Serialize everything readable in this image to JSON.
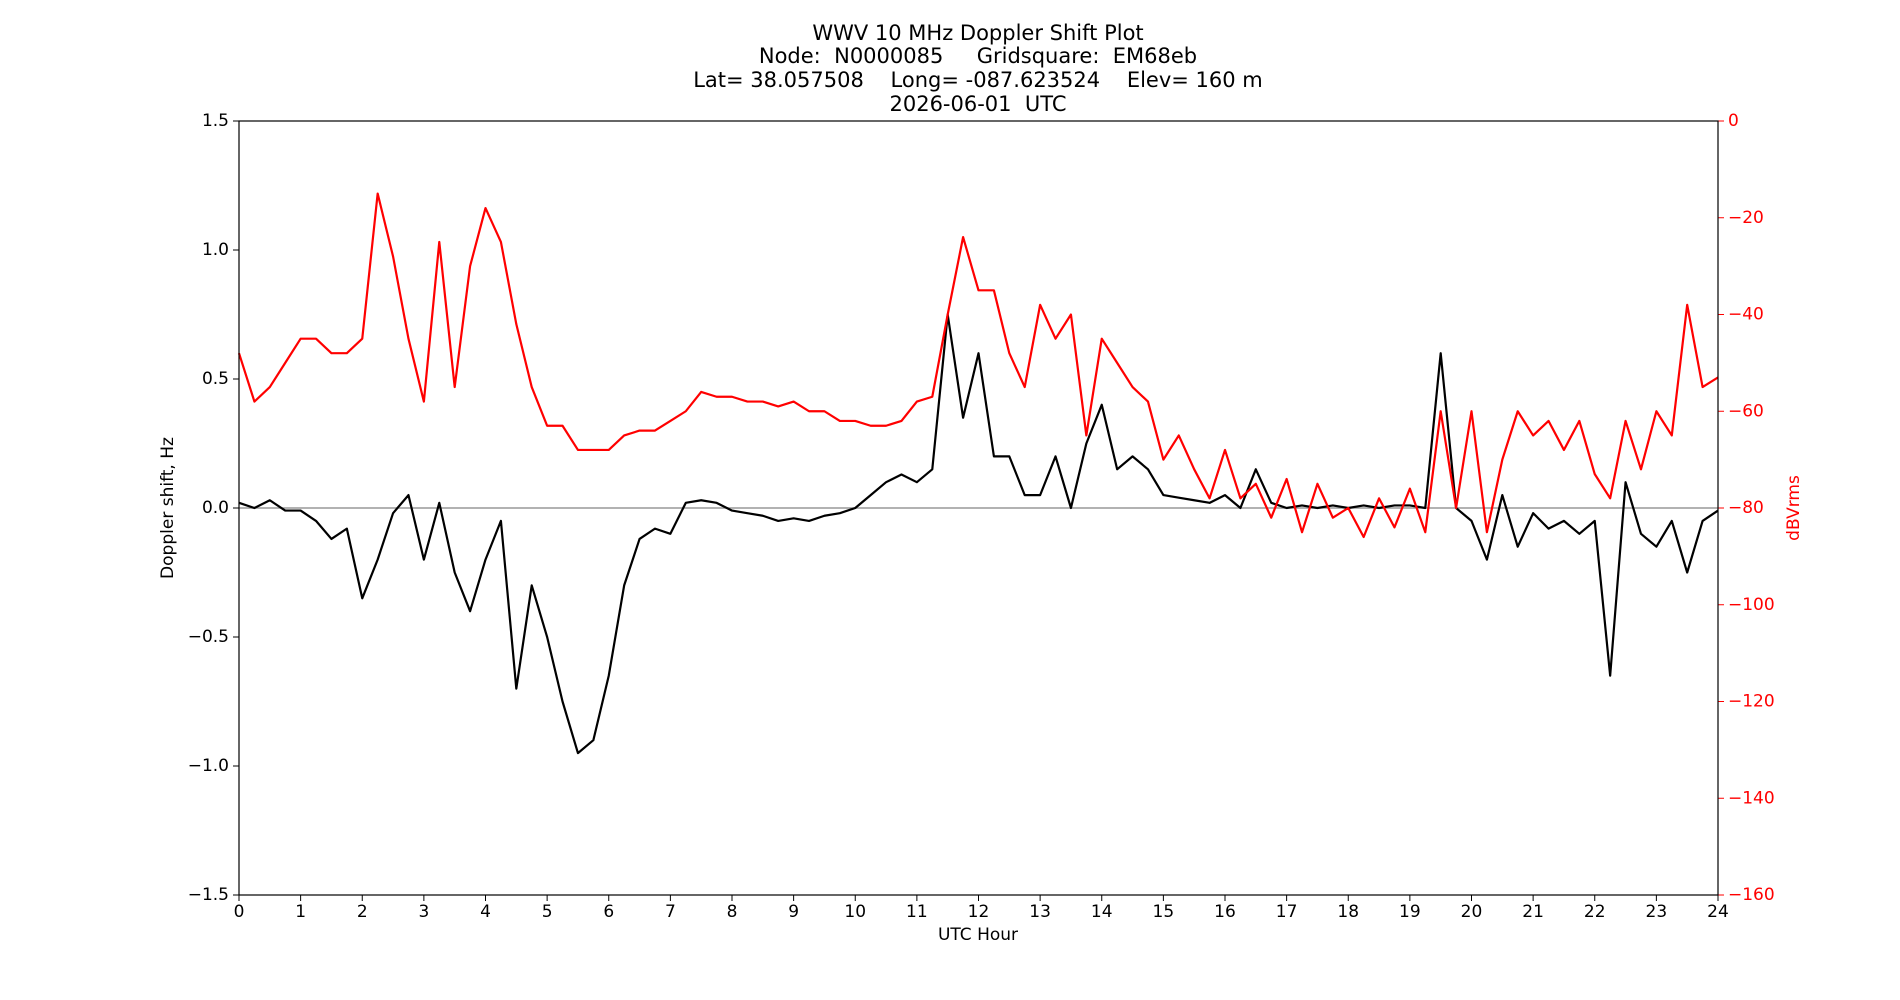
{
  "chart_data": {
    "type": "line",
    "title": [
      "WWV 10 MHz Doppler Shift Plot",
      "Node:  N0000085     Gridsquare:  EM68eb",
      "Lat= 38.057508    Long= -087.623524    Elev= 160 m",
      "2026-06-01  UTC"
    ],
    "xlabel": "UTC Hour",
    "ylabel": "Doppler shift, Hz",
    "y2label": "dBVrms",
    "xlim": [
      0,
      24
    ],
    "ylim": [
      -1.5,
      1.5
    ],
    "y2lim": [
      -160,
      0
    ],
    "xticks": [
      0,
      1,
      2,
      3,
      4,
      5,
      6,
      7,
      8,
      9,
      10,
      11,
      12,
      13,
      14,
      15,
      16,
      17,
      18,
      19,
      20,
      21,
      22,
      23,
      24
    ],
    "yticks": [
      {
        "value": -1.5,
        "label": "−1.5"
      },
      {
        "value": -1.0,
        "label": "−1.0"
      },
      {
        "value": -0.5,
        "label": "−0.5"
      },
      {
        "value": 0,
        "label": "0.0"
      },
      0.5,
      {
        "value": 1.0,
        "label": "1.0"
      },
      1.5
    ],
    "y2ticks": [
      {
        "value": -160,
        "label": "−160"
      },
      {
        "value": -140,
        "label": "−140"
      },
      {
        "value": -120,
        "label": "−120"
      },
      {
        "value": -100,
        "label": "−100"
      },
      {
        "value": -80,
        "label": "−80"
      },
      {
        "value": -60,
        "label": "−60"
      },
      {
        "value": -40,
        "label": "−40"
      },
      {
        "value": -20,
        "label": "−20"
      },
      0
    ],
    "hline": 0,
    "hline_color": "#999999",
    "y2color": "#ff0000",
    "x": [
      0,
      0.25,
      0.5,
      0.75,
      1,
      1.25,
      1.5,
      1.75,
      2,
      2.25,
      2.5,
      2.75,
      3,
      3.25,
      3.5,
      3.75,
      4,
      4.25,
      4.5,
      4.75,
      5,
      5.25,
      5.5,
      5.75,
      6,
      6.25,
      6.5,
      6.75,
      7,
      7.25,
      7.5,
      7.75,
      8,
      8.25,
      8.5,
      8.75,
      9,
      9.25,
      9.5,
      9.75,
      10,
      10.25,
      10.5,
      10.75,
      11,
      11.25,
      11.5,
      11.75,
      12,
      12.25,
      12.5,
      12.75,
      13,
      13.25,
      13.5,
      13.75,
      14,
      14.25,
      14.5,
      14.75,
      15,
      15.25,
      15.5,
      15.75,
      16,
      16.25,
      16.5,
      16.75,
      17,
      17.25,
      17.5,
      17.75,
      18,
      18.25,
      18.5,
      18.75,
      19,
      19.25,
      19.5,
      19.75,
      20,
      20.25,
      20.5,
      20.75,
      21,
      21.25,
      21.5,
      21.75,
      22,
      22.25,
      22.5,
      22.75,
      23,
      23.25,
      23.5,
      23.75,
      24
    ],
    "series": [
      {
        "name": "Doppler shift",
        "color": "#000000",
        "values": [
          0.02,
          0.0,
          0.03,
          -0.01,
          -0.01,
          -0.05,
          -0.12,
          -0.08,
          -0.35,
          -0.2,
          -0.02,
          0.05,
          -0.2,
          0.02,
          -0.25,
          -0.4,
          -0.2,
          -0.05,
          -0.7,
          -0.3,
          -0.5,
          -0.75,
          -0.95,
          -0.9,
          -0.65,
          -0.3,
          -0.12,
          -0.08,
          -0.1,
          0.02,
          0.03,
          0.02,
          -0.01,
          -0.02,
          -0.03,
          -0.05,
          -0.04,
          -0.05,
          -0.03,
          -0.02,
          0.0,
          0.05,
          0.1,
          0.13,
          0.1,
          0.15,
          0.75,
          0.35,
          0.6,
          0.2,
          0.2,
          0.05,
          0.05,
          0.2,
          0.0,
          0.25,
          0.4,
          0.15,
          0.2,
          0.15,
          0.05,
          0.04,
          0.03,
          0.02,
          0.05,
          0.0,
          0.15,
          0.02,
          0.0,
          0.01,
          0.0,
          0.01,
          0.0,
          0.01,
          0.0,
          0.01,
          0.01,
          0.0,
          0.6,
          0.0,
          -0.05,
          -0.2,
          0.05,
          -0.15,
          -0.02,
          -0.08,
          -0.05,
          -0.1,
          -0.05,
          -0.65,
          0.1,
          -0.1,
          -0.15,
          -0.05,
          -0.25,
          -0.05,
          -0.01
        ]
      },
      {
        "name": "dBVrms",
        "color": "#ff0000",
        "axis": "y2",
        "values": [
          -48,
          -58,
          -55,
          -50,
          -45,
          -45,
          -48,
          -48,
          -45,
          -15,
          -28,
          -45,
          -58,
          -25,
          -55,
          -30,
          -18,
          -25,
          -42,
          -55,
          -63,
          -63,
          -68,
          -68,
          -68,
          -65,
          -64,
          -64,
          -62,
          -60,
          -56,
          -57,
          -57,
          -58,
          -58,
          -59,
          -58,
          -60,
          -60,
          -62,
          -62,
          -63,
          -63,
          -62,
          -58,
          -57,
          -40,
          -24,
          -35,
          -35,
          -48,
          -55,
          -38,
          -45,
          -40,
          -65,
          -45,
          -50,
          -55,
          -58,
          -70,
          -65,
          -72,
          -78,
          -68,
          -78,
          -75,
          -82,
          -74,
          -85,
          -75,
          -82,
          -80,
          -86,
          -78,
          -84,
          -76,
          -85,
          -60,
          -80,
          -60,
          -85,
          -70,
          -60,
          -65,
          -62,
          -68,
          -62,
          -73,
          -78,
          -62,
          -72,
          -60,
          -65,
          -38,
          -55,
          -53
        ]
      }
    ]
  }
}
